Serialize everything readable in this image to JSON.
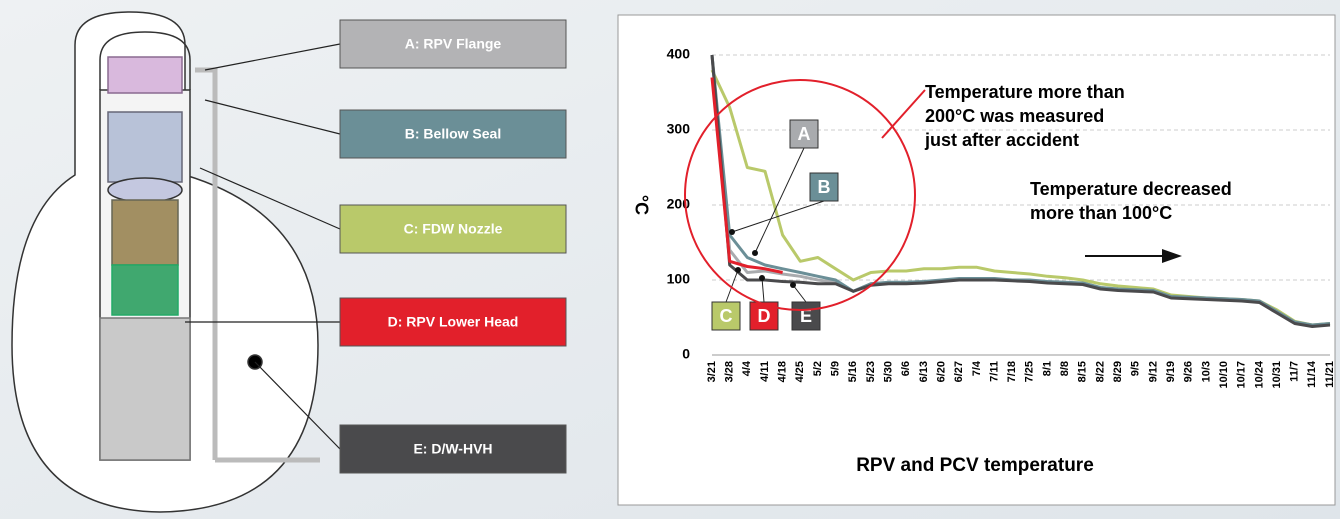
{
  "diagram": {
    "labels": [
      "A: RPV Flange",
      "B: Bellow Seal",
      "C: FDW Nozzle",
      "D: RPV Lower Head",
      "E: D/W-HVH"
    ]
  },
  "chart_data": {
    "type": "line",
    "title": "RPV and PCV temperature",
    "y_label": "°C",
    "annotations": [
      [
        "Temperature more than",
        "200°C was measured",
        "just after accident"
      ],
      [
        "Temperature decreased",
        "more than 100°C"
      ]
    ],
    "categories": [
      "3/21",
      "3/28",
      "4/4",
      "4/11",
      "4/18",
      "4/25",
      "5/2",
      "5/9",
      "5/16",
      "5/23",
      "5/30",
      "6/6",
      "6/13",
      "6/20",
      "6/27",
      "7/4",
      "7/11",
      "7/18",
      "7/25",
      "8/1",
      "8/8",
      "8/15",
      "8/22",
      "8/29",
      "9/5",
      "9/12",
      "9/19",
      "9/26",
      "10/3",
      "10/10",
      "10/17",
      "10/24",
      "10/31",
      "11/7",
      "11/14",
      "11/21"
    ],
    "series": [
      {
        "name": "A",
        "color": "#a9abae",
        "values": [
          400,
          140,
          110,
          112,
          108,
          105,
          100,
          97,
          85,
          95,
          96,
          96,
          97,
          99,
          101,
          101,
          101,
          100,
          99,
          97,
          96,
          95,
          89,
          87,
          86,
          85,
          77,
          76,
          75,
          74,
          73,
          71,
          57,
          43,
          39,
          41
        ]
      },
      {
        "name": "B",
        "color": "#6b8f97",
        "values": [
          400,
          160,
          130,
          120,
          115,
          110,
          105,
          100,
          85,
          95,
          97,
          97,
          98,
          100,
          102,
          102,
          102,
          100,
          100,
          98,
          97,
          96,
          90,
          88,
          87,
          86,
          78,
          77,
          76,
          75,
          74,
          72,
          58,
          44,
          40,
          42
        ]
      },
      {
        "name": "C",
        "color": "#b9c96a",
        "values": [
          380,
          330,
          250,
          245,
          160,
          125,
          130,
          115,
          100,
          110,
          112,
          112,
          115,
          115,
          117,
          117,
          112,
          110,
          108,
          105,
          103,
          100,
          95,
          92,
          90,
          88,
          80,
          78,
          76,
          75,
          74,
          72,
          60,
          45,
          40,
          42
        ]
      },
      {
        "name": "D",
        "color": "#e2202b",
        "values": [
          370,
          125,
          118,
          115,
          110,
          null,
          null,
          null,
          null,
          null,
          null,
          null,
          null,
          null,
          null,
          null,
          null,
          null,
          null,
          null,
          null,
          null,
          null,
          null,
          null,
          null,
          null,
          null,
          null,
          null,
          null,
          null,
          null,
          null,
          null,
          null
        ]
      },
      {
        "name": "E",
        "color": "#4a4a4c",
        "values": [
          400,
          120,
          100,
          100,
          98,
          97,
          95,
          95,
          85,
          93,
          95,
          95,
          96,
          98,
          100,
          100,
          100,
          99,
          98,
          96,
          95,
          94,
          88,
          86,
          85,
          84,
          76,
          75,
          74,
          73,
          72,
          70,
          56,
          42,
          38,
          40
        ]
      }
    ],
    "ylim": [
      0,
      400
    ],
    "yticks": [
      0,
      100,
      200,
      300,
      400
    ],
    "grid": true
  }
}
